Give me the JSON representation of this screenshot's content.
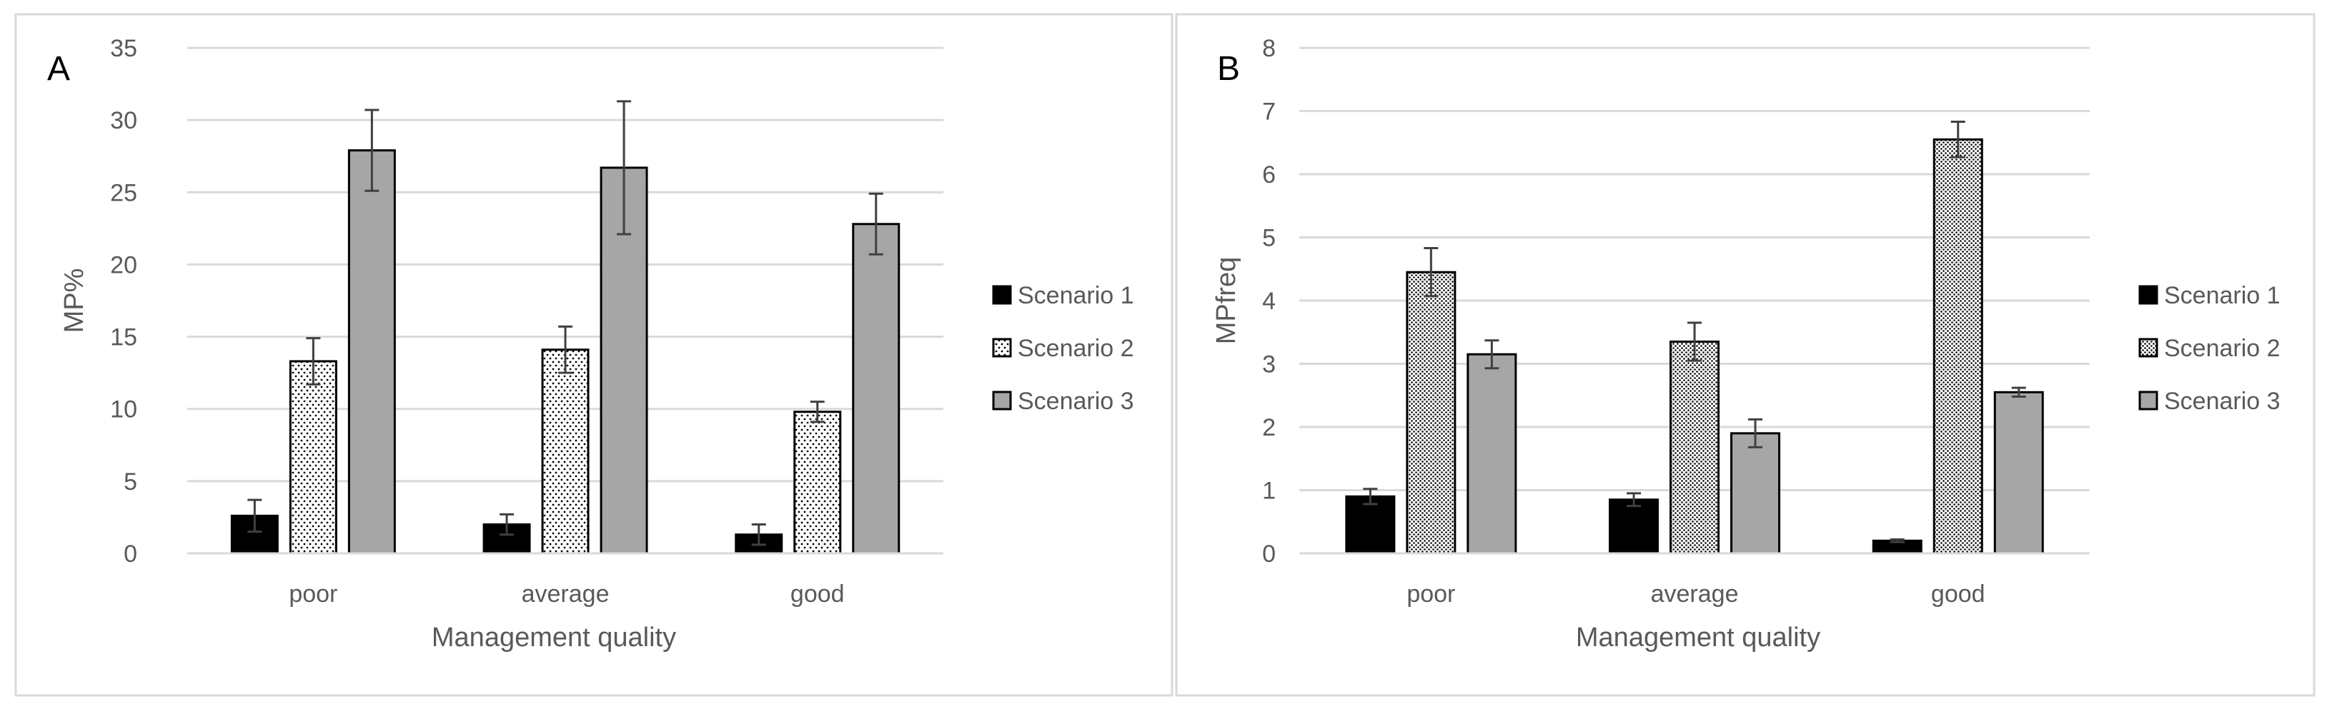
{
  "colors": {
    "frame": "#d9d9d9",
    "grid": "#d9d9d9",
    "axis": "#d9d9d9",
    "bar_outline": "#000000",
    "scenario1": "#000000",
    "scenario2": "#ffffff",
    "scenario3": "#a6a6a6",
    "error_bar": "#404040",
    "text": "#595959"
  },
  "chart_data": [
    {
      "type": "bar",
      "panel_label": "A",
      "title": "",
      "xlabel": "Management quality",
      "ylabel": "MP%",
      "categories": [
        "poor",
        "average",
        "good"
      ],
      "ylim": [
        0,
        35
      ],
      "yticks": [
        0,
        5,
        10,
        15,
        20,
        25,
        30,
        35
      ],
      "ytick_labels": [
        "0",
        "5",
        "10",
        "15",
        "20",
        "25",
        "30",
        "35"
      ],
      "grid": true,
      "legend_position": "right",
      "series": [
        {
          "name": "Scenario 1",
          "pattern": "solid-black",
          "values": [
            2.6,
            2.0,
            1.3
          ],
          "errors": [
            1.1,
            0.7,
            0.7
          ]
        },
        {
          "name": "Scenario 2",
          "pattern": "dotted",
          "values": [
            13.3,
            14.1,
            9.8
          ],
          "errors": [
            1.6,
            1.6,
            0.7
          ]
        },
        {
          "name": "Scenario 3",
          "pattern": "solid-gray",
          "values": [
            27.9,
            26.7,
            22.8
          ],
          "errors": [
            2.8,
            4.6,
            2.1
          ]
        }
      ]
    },
    {
      "type": "bar",
      "panel_label": "B",
      "title": "",
      "xlabel": "Management quality",
      "ylabel": "MPfreq",
      "categories": [
        "poor",
        "average",
        "good"
      ],
      "ylim": [
        0,
        8
      ],
      "yticks": [
        0,
        1,
        2,
        3,
        4,
        5,
        6,
        7,
        8
      ],
      "ytick_labels": [
        "0",
        "1",
        "2",
        "3",
        "4",
        "5",
        "6",
        "7",
        "8"
      ],
      "grid": true,
      "legend_position": "right",
      "series": [
        {
          "name": "Scenario 1",
          "pattern": "solid-black",
          "values": [
            0.9,
            0.85,
            0.2
          ],
          "errors": [
            0.12,
            0.1,
            0.02
          ]
        },
        {
          "name": "Scenario 2",
          "pattern": "dotted-dense",
          "values": [
            4.45,
            3.35,
            6.55
          ],
          "errors": [
            0.38,
            0.3,
            0.28
          ]
        },
        {
          "name": "Scenario 3",
          "pattern": "solid-gray",
          "values": [
            3.15,
            1.9,
            2.55
          ],
          "errors": [
            0.22,
            0.22,
            0.07
          ]
        }
      ]
    }
  ]
}
